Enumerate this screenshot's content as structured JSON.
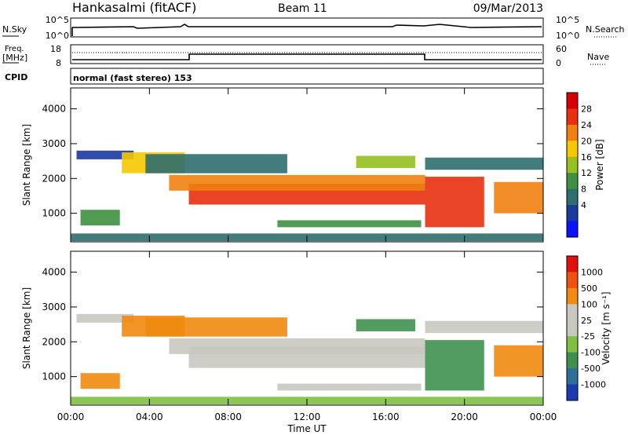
{
  "header": {
    "station": "Hankasalmi (fitACF)",
    "beam": "Beam 11",
    "date": "09/Mar/2013"
  },
  "top_panels": {
    "nsky_label": "N.Sky",
    "nsky_ticks": [
      "10^5",
      "10^0"
    ],
    "nsearch_label": "N.Search",
    "nsearch_ticks": [
      "10^5",
      "10^0"
    ],
    "freq_label_1": "Freq.",
    "freq_label_2": "[MHz]",
    "freq_ticks": [
      "18",
      "8"
    ],
    "nave_label": "Nave",
    "nave_ticks": [
      "60",
      "0"
    ],
    "cpid_label": "CPID",
    "cpid_text": "normal (fast stereo) 153"
  },
  "chart_data": [
    {
      "type": "heatmap",
      "name": "power",
      "ylabel": "Slant Range [km]",
      "yticks": [
        "4000",
        "3000",
        "2000",
        "1000"
      ],
      "ytick_values": [
        4000,
        3000,
        2000,
        1000
      ],
      "ylim": [
        180,
        4600
      ],
      "xlim_hours": [
        0,
        24
      ],
      "colorbar_label": "Power [dB]",
      "colorbar_ticks": [
        "28",
        "24",
        "20",
        "16",
        "12",
        "8",
        "4"
      ],
      "colors": [
        "#0a12ff",
        "#1a3aa0",
        "#2f6e6e",
        "#3f9040",
        "#95c020",
        "#f5c800",
        "#f08010",
        "#e83010",
        "#d80000"
      ],
      "bands": [
        {
          "t0": 0.3,
          "t1": 3.2,
          "r0": 2550,
          "r1": 2800,
          "level": 1
        },
        {
          "t0": 2.6,
          "t1": 5.8,
          "r0": 2150,
          "r1": 2750,
          "level": 5
        },
        {
          "t0": 6.0,
          "t1": 18.0,
          "r0": 1250,
          "r1": 1850,
          "level": 7
        },
        {
          "t0": 5.0,
          "t1": 18.0,
          "r0": 1650,
          "r1": 2100,
          "level": 6
        },
        {
          "t0": 3.8,
          "t1": 11.0,
          "r0": 2150,
          "r1": 2700,
          "level": 2
        },
        {
          "t0": 14.5,
          "t1": 17.5,
          "r0": 2300,
          "r1": 2650,
          "level": 4
        },
        {
          "t0": 18.0,
          "t1": 21.0,
          "r0": 600,
          "r1": 2050,
          "level": 7
        },
        {
          "t0": 18.0,
          "t1": 24.0,
          "r0": 2250,
          "r1": 2600,
          "level": 2
        },
        {
          "t0": 21.5,
          "t1": 24.0,
          "r0": 1000,
          "r1": 1900,
          "level": 6
        },
        {
          "t0": 0.5,
          "t1": 2.5,
          "r0": 650,
          "r1": 1100,
          "level": 3
        },
        {
          "t0": 10.5,
          "t1": 17.8,
          "r0": 600,
          "r1": 800,
          "level": 3
        },
        {
          "t0": 0.0,
          "t1": 24.0,
          "r0": 200,
          "r1": 420,
          "level": 2
        }
      ]
    },
    {
      "type": "heatmap",
      "name": "velocity",
      "ylabel": "Slant Range [km]",
      "yticks": [
        "4000",
        "3000",
        "2000",
        "1000"
      ],
      "ytick_values": [
        4000,
        3000,
        2000,
        1000
      ],
      "ylim": [
        180,
        4600
      ],
      "xlim_hours": [
        0,
        24
      ],
      "colorbar_label": "Velocity [m s⁻¹]",
      "colorbar_ticks": [
        "1000",
        "500",
        "100",
        "25",
        "-25",
        "-100",
        "-500",
        "-1000"
      ],
      "colors": [
        "#1a3cb0",
        "#2e6e9a",
        "#3f9050",
        "#80c040",
        "#c8c8c0",
        "#c8c8c0",
        "#f08a10",
        "#f05010",
        "#e01010"
      ],
      "bands": [
        {
          "t0": 0.3,
          "t1": 3.2,
          "r0": 2550,
          "r1": 2800,
          "level": 4
        },
        {
          "t0": 2.6,
          "t1": 5.8,
          "r0": 2150,
          "r1": 2750,
          "level": 6
        },
        {
          "t0": 6.0,
          "t1": 18.0,
          "r0": 1250,
          "r1": 1850,
          "level": 4
        },
        {
          "t0": 5.0,
          "t1": 18.0,
          "r0": 1650,
          "r1": 2100,
          "level": 4
        },
        {
          "t0": 3.8,
          "t1": 11.0,
          "r0": 2150,
          "r1": 2700,
          "level": 6
        },
        {
          "t0": 14.5,
          "t1": 17.5,
          "r0": 2300,
          "r1": 2650,
          "level": 2
        },
        {
          "t0": 18.0,
          "t1": 21.0,
          "r0": 600,
          "r1": 2050,
          "level": 2
        },
        {
          "t0": 18.0,
          "t1": 24.0,
          "r0": 2250,
          "r1": 2600,
          "level": 4
        },
        {
          "t0": 21.5,
          "t1": 24.0,
          "r0": 1000,
          "r1": 1900,
          "level": 6
        },
        {
          "t0": 0.5,
          "t1": 2.5,
          "r0": 650,
          "r1": 1100,
          "level": 6
        },
        {
          "t0": 10.5,
          "t1": 17.8,
          "r0": 600,
          "r1": 800,
          "level": 4
        },
        {
          "t0": 0.0,
          "t1": 24.0,
          "r0": 200,
          "r1": 420,
          "level": 3
        }
      ]
    }
  ],
  "xaxis": {
    "label": "Time UT",
    "ticks": [
      "00:00",
      "04:00",
      "08:00",
      "12:00",
      "16:00",
      "20:00",
      "00:00"
    ],
    "tick_hours": [
      0,
      4,
      8,
      12,
      16,
      20,
      24
    ]
  }
}
